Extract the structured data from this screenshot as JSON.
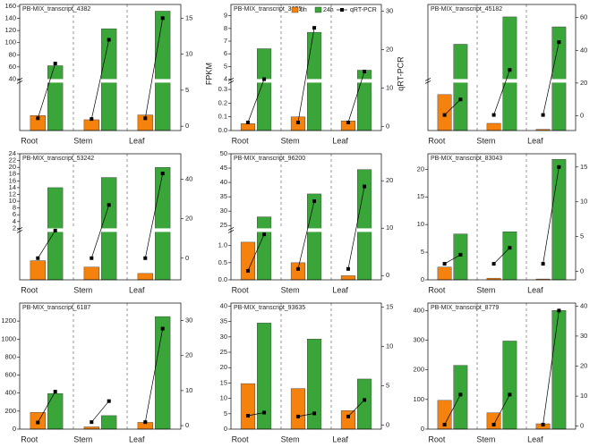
{
  "chart_data": [
    {
      "type": "bar",
      "title": "PB-MIX_transcript_4382",
      "categories": [
        "Root",
        "Stem",
        "Leaf"
      ],
      "ybreak": true,
      "ylim": [
        [
          0,
          8
        ],
        [
          40,
          163
        ]
      ],
      "yticks": [
        40,
        60,
        80,
        100,
        120,
        140,
        160
      ],
      "y2lim": [
        -0.6,
        16.9
      ],
      "y2ticks": [
        0,
        5,
        10,
        15
      ],
      "series": [
        {
          "name": "0h",
          "color": "#f5820d",
          "values": [
            2.5,
            1.8,
            2.6
          ]
        },
        {
          "name": "24h",
          "color": "#3aa538",
          "values": [
            62,
            123,
            152
          ]
        },
        {
          "name": "qRT-PCR",
          "color": "#000000",
          "axis": "y2",
          "values": [
            [
              1.1,
              8.7
            ],
            [
              1,
              12
            ],
            [
              1.1,
              15
            ]
          ]
        }
      ]
    },
    {
      "type": "bar",
      "title": "PB-MIX_transcript_3655",
      "categories": [
        "Root",
        "Stem",
        "Leaf"
      ],
      "ybreak": true,
      "ylim": [
        [
          0,
          0.35
        ],
        [
          4,
          9.9
        ]
      ],
      "yticks": [
        {
          "value": 0,
          "label": "0.0"
        },
        {
          "value": 0.1,
          "label": "0.1"
        },
        {
          "value": 0.2,
          "label": "0.2"
        },
        {
          "value": 0.3,
          "label": "0.3"
        },
        4,
        5,
        6,
        7,
        8,
        9
      ],
      "y2lim": [
        -1.1,
        31.8
      ],
      "y2ticks": [
        0,
        10,
        20,
        30
      ],
      "legend": "top-right",
      "ylabel": "FPKM",
      "y2label": "qRT-PCR",
      "series": [
        {
          "name": "0h",
          "color": "#f5820d",
          "values": [
            0.05,
            0.1,
            0.07
          ]
        },
        {
          "name": "24h",
          "color": "#3aa538",
          "values": [
            6.4,
            7.7,
            4.7
          ]
        },
        {
          "name": "qRT-PCR",
          "color": "#000000",
          "axis": "y2",
          "values": [
            [
              1,
              12.3
            ],
            [
              1,
              25.7
            ],
            [
              1,
              14.3
            ]
          ]
        }
      ]
    },
    {
      "type": "bar",
      "title": "PB-MIX_transcript_45182",
      "categories": [
        "Root",
        "Stem",
        "Leaf"
      ],
      "ybreak": true,
      "ylim": [
        [
          0,
          4
        ],
        [
          20,
          50
        ]
      ],
      "y2lim": [
        -9,
        68
      ],
      "y2ticks": [
        0,
        20,
        40,
        60
      ],
      "series": [
        {
          "name": "0h",
          "color": "#f5820d",
          "values": [
            3,
            0.6,
            0.1
          ]
        },
        {
          "name": "24h",
          "color": "#3aa538",
          "values": [
            34,
            45,
            41
          ]
        },
        {
          "name": "qRT-PCR",
          "color": "#000000",
          "axis": "y2",
          "values": [
            [
              0.5,
              10
            ],
            [
              0.5,
              28
            ],
            [
              0.5,
              45
            ]
          ]
        }
      ]
    },
    {
      "type": "bar",
      "title": "PB-MIX_transcript_53242",
      "categories": [
        "Root",
        "Stem",
        "Leaf"
      ],
      "ybreak": true,
      "ylim": [
        [
          0,
          1.5
        ],
        [
          2,
          24
        ]
      ],
      "yticks": [
        2,
        4,
        6,
        8,
        10,
        12,
        14,
        16,
        18,
        20,
        22,
        24
      ],
      "y2lim": [
        -11,
        53
      ],
      "y2ticks": [
        0,
        20,
        40
      ],
      "series": [
        {
          "name": "0h",
          "color": "#f5820d",
          "values": [
            0.6,
            0.4,
            0.2
          ]
        },
        {
          "name": "24h",
          "color": "#3aa538",
          "values": [
            14,
            17,
            20
          ]
        },
        {
          "name": "qRT-PCR",
          "color": "#000000",
          "axis": "y2",
          "values": [
            [
              0,
              14
            ],
            [
              0,
              27
            ],
            [
              0,
              43
            ]
          ]
        }
      ]
    },
    {
      "type": "bar",
      "title": "PB-MIX_transcript_96200",
      "categories": [
        "Root",
        "Stem",
        "Leaf"
      ],
      "ybreak": true,
      "ylim": [
        [
          0,
          1.4
        ],
        [
          24,
          50
        ]
      ],
      "yticks": [
        {
          "value": 0,
          "label": "0.0"
        },
        {
          "value": 0.5,
          "label": "0.5"
        },
        {
          "value": 1,
          "label": "1.0"
        },
        25,
        30,
        35,
        40,
        45,
        50
      ],
      "y2lim": [
        -0.9,
        25.7
      ],
      "y2ticks": [
        0,
        10,
        20
      ],
      "series": [
        {
          "name": "0h",
          "color": "#f5820d",
          "values": [
            1.1,
            0.5,
            0.12
          ]
        },
        {
          "name": "24h",
          "color": "#3aa538",
          "values": [
            28,
            36,
            44.5
          ]
        },
        {
          "name": "qRT-PCR",
          "color": "#000000",
          "axis": "y2",
          "values": [
            [
              1,
              8.7
            ],
            [
              1.4,
              15.7
            ],
            [
              1.4,
              18.8
            ]
          ]
        }
      ]
    },
    {
      "type": "bar",
      "title": "PB-MIX_transcript_83043",
      "categories": [
        "Root",
        "Stem",
        "Leaf"
      ],
      "ylim": [
        0,
        22.8
      ],
      "yticks": [
        0,
        5,
        10,
        15,
        20
      ],
      "y2lim": [
        -1.2,
        16.9
      ],
      "y2ticks": [
        0,
        5,
        10,
        15
      ],
      "series": [
        {
          "name": "0h",
          "color": "#f5820d",
          "values": [
            2.3,
            0.3,
            0.15
          ]
        },
        {
          "name": "24h",
          "color": "#3aa538",
          "values": [
            8.3,
            8.7,
            21.8
          ]
        },
        {
          "name": "qRT-PCR",
          "color": "#000000",
          "axis": "y2",
          "values": [
            [
              1.1,
              2.4
            ],
            [
              1.1,
              3.4
            ],
            [
              1.1,
              15
            ]
          ]
        }
      ]
    },
    {
      "type": "bar",
      "title": "PB-MIX_transcript_6187",
      "categories": [
        "Root",
        "Stem",
        "Leaf"
      ],
      "ylim": [
        0,
        1400
      ],
      "yticks": [
        0,
        200,
        400,
        600,
        800,
        1000,
        1200
      ],
      "y2lim": [
        -1,
        35
      ],
      "y2ticks": [
        0,
        10,
        20,
        30
      ],
      "series": [
        {
          "name": "0h",
          "color": "#f5820d",
          "values": [
            185,
            25,
            75
          ]
        },
        {
          "name": "24h",
          "color": "#3aa538",
          "values": [
            395,
            150,
            1250
          ]
        },
        {
          "name": "qRT-PCR",
          "color": "#000000",
          "axis": "y2",
          "values": [
            [
              0.9,
              9.7
            ],
            [
              1,
              7
            ],
            [
              1,
              27.7
            ]
          ]
        }
      ]
    },
    {
      "type": "bar",
      "title": "PB-MIX_transcript_93635",
      "categories": [
        "Root",
        "Stem",
        "Leaf"
      ],
      "ylim": [
        0,
        41
      ],
      "yticks": [
        0,
        5,
        10,
        15,
        20,
        25,
        30,
        35,
        40
      ],
      "y2lim": [
        -0.5,
        15.5
      ],
      "y2ticks": [
        0,
        5,
        10,
        15
      ],
      "series": [
        {
          "name": "0h",
          "color": "#f5820d",
          "values": [
            14.8,
            13.2,
            6
          ]
        },
        {
          "name": "24h",
          "color": "#3aa538",
          "values": [
            34.5,
            29.3,
            16.3
          ]
        },
        {
          "name": "qRT-PCR",
          "color": "#000000",
          "axis": "y2",
          "values": [
            [
              1.2,
              1.6
            ],
            [
              1.1,
              1.5
            ],
            [
              1.1,
              3.2
            ]
          ]
        }
      ]
    },
    {
      "type": "bar",
      "title": "PB-MIX_transcript_8779",
      "categories": [
        "Root",
        "Stem",
        "Leaf"
      ],
      "ylim": [
        0,
        425
      ],
      "yticks": [
        0,
        100,
        200,
        300,
        400
      ],
      "y2lim": [
        -1,
        41
      ],
      "y2ticks": [
        0,
        10,
        20,
        30,
        40
      ],
      "series": [
        {
          "name": "0h",
          "color": "#f5820d",
          "values": [
            97,
            55,
            18
          ]
        },
        {
          "name": "24h",
          "color": "#3aa538",
          "values": [
            215,
            297,
            400
          ]
        },
        {
          "name": "qRT-PCR",
          "color": "#000000",
          "axis": "y2",
          "values": [
            [
              0.5,
              10.5
            ],
            [
              0.5,
              10.5
            ],
            [
              0.5,
              38.5
            ]
          ]
        }
      ]
    }
  ]
}
